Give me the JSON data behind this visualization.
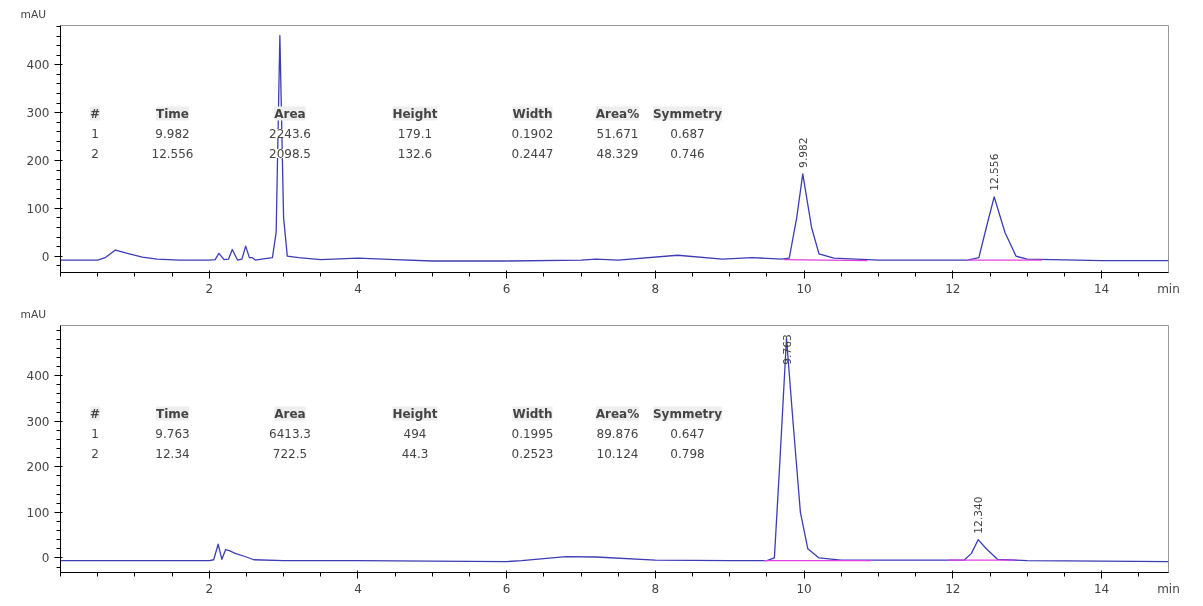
{
  "chart_data": [
    {
      "type": "line",
      "ylabel": "mAU",
      "xlabel": "min",
      "xlim": [
        0,
        14.9
      ],
      "ylim": [
        -34,
        482
      ],
      "xticks": [
        2,
        4,
        6,
        8,
        10,
        12,
        14
      ],
      "yticks": [
        0,
        100,
        200,
        300,
        400
      ],
      "grid": false,
      "marker": "none",
      "line_style": "solid",
      "series": [
        {
          "color": "#3c3cb4",
          "x": [
            0,
            0.5,
            0.6,
            0.74,
            0.9,
            1.1,
            1.3,
            1.6,
            2.0,
            2.08,
            2.13,
            2.2,
            2.26,
            2.31,
            2.38,
            2.44,
            2.49,
            2.54,
            2.58,
            2.62,
            2.75,
            2.85,
            2.9,
            2.95,
            3.0,
            3.05,
            3.2,
            3.5,
            4.0,
            4.5,
            5.0,
            6.0,
            7.0,
            7.2,
            7.5,
            8.3,
            8.9,
            9.3,
            9.7,
            9.8,
            9.9,
            9.982,
            10.1,
            10.2,
            10.4,
            11.0,
            12.2,
            12.35,
            12.45,
            12.556,
            12.7,
            12.85,
            13.0,
            14.0,
            14.9
          ],
          "values": [
            -8,
            -8,
            -3,
            13,
            6,
            -2,
            -6,
            -8,
            -8,
            -7,
            6,
            -7,
            -6,
            14,
            -8,
            -6,
            21,
            -3,
            -3,
            -8,
            -5,
            -3,
            50,
            461,
            80,
            0,
            -3,
            -7,
            -4,
            -7,
            -10,
            -10,
            -8,
            -6,
            -8,
            2,
            -6,
            -3,
            -6,
            -4,
            80,
            172,
            60,
            5,
            -4,
            -8,
            -8,
            -3,
            60,
            124,
            50,
            0,
            -6,
            -9,
            -9
          ]
        },
        {
          "color": "#e040e0",
          "x": [
            9.73,
            10.85
          ],
          "values": [
            -7,
            -9
          ]
        },
        {
          "color": "#e040e0",
          "x": [
            12.19,
            13.2
          ],
          "values": [
            -8,
            -8
          ]
        }
      ],
      "annotations": [
        "#",
        "Time",
        "Area",
        "Height",
        "Width",
        "Area%",
        "Symmetry",
        "1",
        "9.982",
        "2243.6",
        "179.1",
        "0.1902",
        "51.671",
        "0.687",
        "2",
        "12.556",
        "2098.5",
        "132.6",
        "0.2447",
        "48.329",
        "0.746",
        {
          "text": "9.982",
          "x": 9.982,
          "y": 172
        },
        {
          "text": "12.556",
          "x": 12.556,
          "y": 124
        }
      ]
    },
    {
      "type": "line",
      "ylabel": "mAU",
      "xlabel": "min",
      "xlim": [
        0,
        14.9
      ],
      "ylim": [
        -32,
        510
      ],
      "xticks": [
        2,
        4,
        6,
        8,
        10,
        12,
        14
      ],
      "yticks": [
        0,
        100,
        200,
        300,
        400
      ],
      "grid": false,
      "marker": "none",
      "line_style": "solid",
      "series": [
        {
          "color": "#3c3cb4",
          "x": [
            0,
            1.0,
            2.0,
            2.06,
            2.12,
            2.17,
            2.22,
            2.27,
            2.35,
            2.5,
            2.6,
            3.0,
            4.0,
            5.0,
            6.0,
            6.2,
            6.8,
            7.2,
            8.0,
            9.0,
            9.5,
            9.6,
            9.67,
            9.763,
            9.85,
            9.95,
            10.05,
            10.2,
            10.5,
            12.15,
            12.25,
            12.34,
            12.45,
            12.6,
            13.0,
            14.0,
            14.9
          ],
          "values": [
            -6,
            -6,
            -6,
            -4,
            30,
            -3,
            18,
            16,
            10,
            2,
            -4,
            -6,
            -6,
            -7,
            -8,
            -6,
            3,
            2,
            -5,
            -6,
            -6,
            0,
            200,
            482,
            300,
            100,
            20,
            0,
            -5,
            -5,
            10,
            40,
            20,
            -3,
            -6,
            -7,
            -8
          ]
        },
        {
          "color": "#e040e0",
          "x": [
            9.46,
            10.9
          ],
          "values": [
            -6,
            -6
          ]
        },
        {
          "color": "#e040e0",
          "x": [
            11.93,
            12.84
          ],
          "values": [
            -5,
            -5
          ]
        }
      ],
      "annotations": [
        "#",
        "Time",
        "Area",
        "Height",
        "Width",
        "Area%",
        "Symmetry",
        "1",
        "9.763",
        "6413.3",
        "494",
        "0.1995",
        "89.876",
        "0.647",
        "2",
        "12.34",
        "722.5",
        "44.3",
        "0.2523",
        "10.124",
        "0.798",
        {
          "text": "9.763",
          "x": 9.763,
          "y": 482
        },
        {
          "text": "12.340",
          "x": 12.34,
          "y": 40
        }
      ]
    }
  ]
}
